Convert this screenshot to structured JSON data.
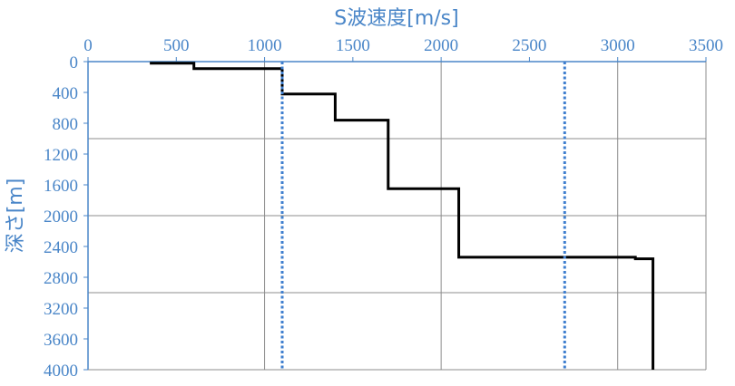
{
  "chart_data": {
    "type": "line",
    "xlabel": "S波速度[m/s]",
    "ylabel": "深さ[m]",
    "xlim": [
      0,
      3500
    ],
    "ylim": [
      0,
      4000
    ],
    "x_ticks": [
      "0",
      "500",
      "1000",
      "1500",
      "2000",
      "2500",
      "3000",
      "3500"
    ],
    "y_ticks": [
      "0",
      "400",
      "800",
      "1200",
      "1600",
      "2000",
      "2400",
      "2800",
      "3200",
      "3600",
      "4000"
    ],
    "x_axis_position": "top",
    "y_reversed": true,
    "grid": {
      "vertical_major": [
        0,
        1000,
        2000,
        3000
      ],
      "horizontal_major": [
        0,
        1000,
        2000,
        3000,
        4000
      ]
    },
    "series": [
      {
        "style": "step",
        "color": "#000000",
        "points": [
          [
            350,
            20
          ],
          [
            600,
            20
          ],
          [
            600,
            90
          ],
          [
            1100,
            90
          ],
          [
            1100,
            420
          ],
          [
            1400,
            420
          ],
          [
            1400,
            760
          ],
          [
            1700,
            760
          ],
          [
            1700,
            1650
          ],
          [
            2100,
            1650
          ],
          [
            2100,
            2540
          ],
          [
            3100,
            2540
          ],
          [
            3100,
            2560
          ],
          [
            3200,
            2560
          ],
          [
            3200,
            4000
          ]
        ]
      },
      {
        "style": "dotted",
        "color": "#3f7fcf",
        "points": [
          [
            1100,
            0
          ],
          [
            1100,
            4000
          ]
        ]
      },
      {
        "style": "dotted",
        "color": "#3f7fcf",
        "points": [
          [
            2700,
            0
          ],
          [
            2700,
            4000
          ]
        ]
      }
    ]
  }
}
